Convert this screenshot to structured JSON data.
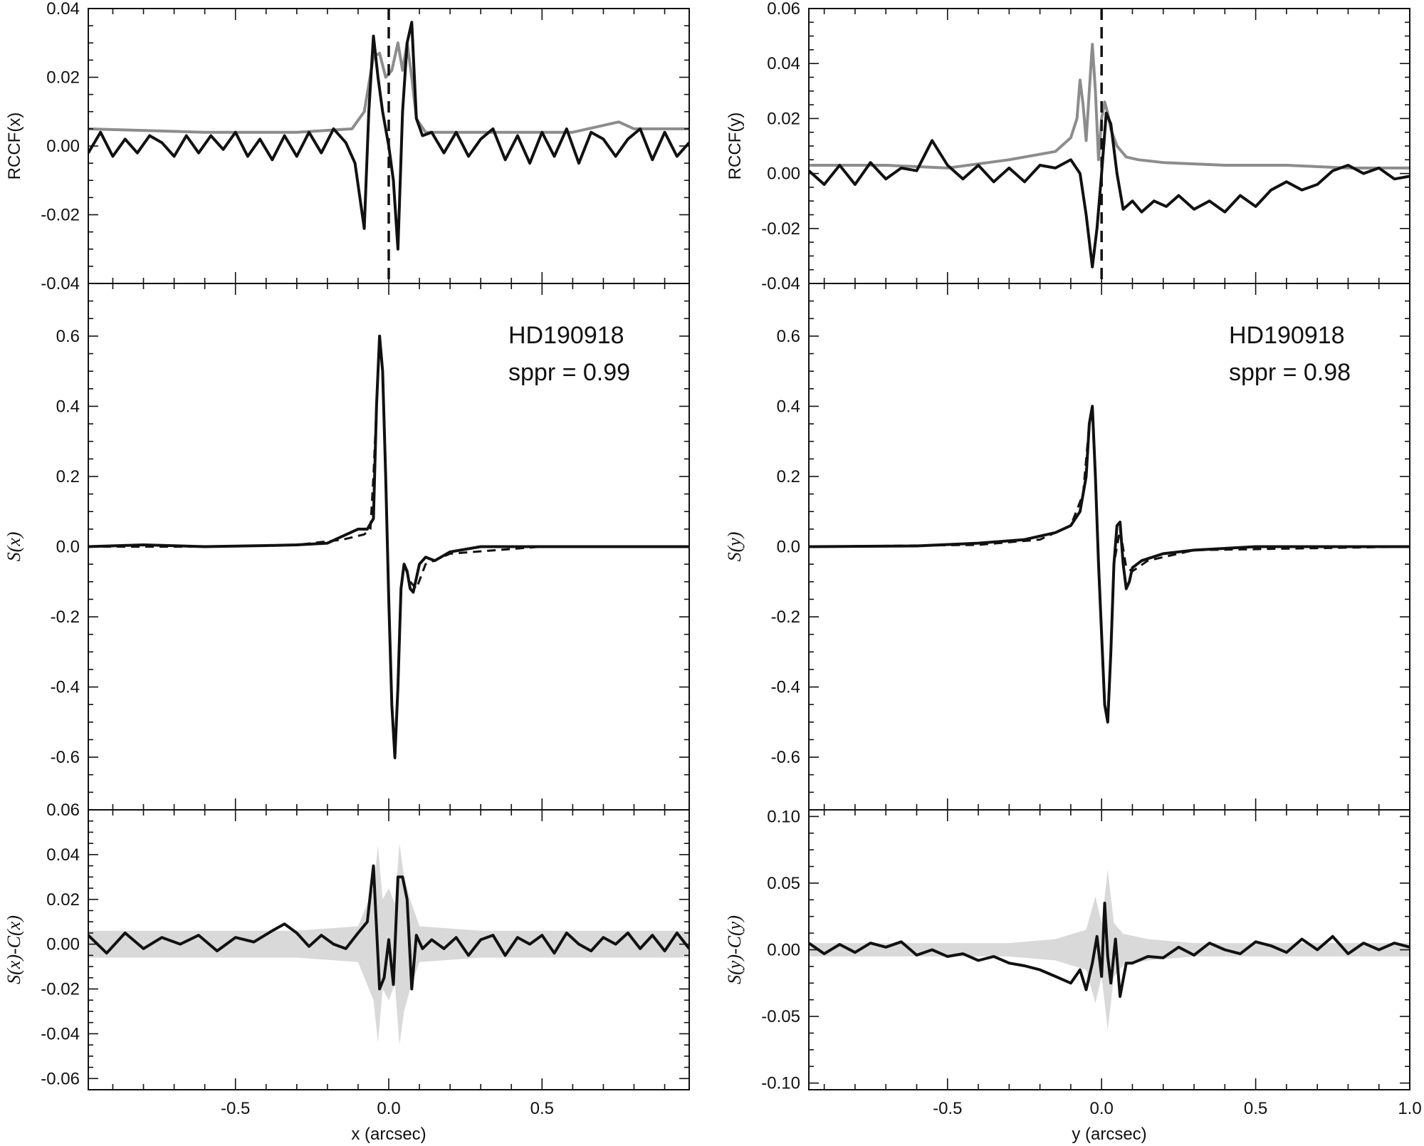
{
  "colors": {
    "black": "#111111",
    "gray": "#8c8c8c",
    "band": "#d9d9d9"
  },
  "chart_data": [
    {
      "type": "line",
      "panel": "left-top",
      "ylabel": "RCCF(x)",
      "xlim": [
        -0.98,
        0.98
      ],
      "ylim": [
        -0.04,
        0.04
      ],
      "yticks": [
        "-0.04",
        "-0.02",
        "0.00",
        "0.02",
        "0.04"
      ],
      "vline_x": 0.0,
      "series": [
        {
          "color": "gray",
          "x": [
            -0.98,
            -0.6,
            -0.3,
            -0.12,
            -0.08,
            -0.05,
            -0.03,
            -0.01,
            0.01,
            0.03,
            0.045,
            0.06,
            0.075,
            0.09,
            0.12,
            0.3,
            0.6,
            0.75,
            0.8,
            0.98
          ],
          "y": [
            0.005,
            0.004,
            0.004,
            0.005,
            0.01,
            0.026,
            0.027,
            0.02,
            0.022,
            0.03,
            0.022,
            0.03,
            0.02,
            0.008,
            0.004,
            0.004,
            0.004,
            0.007,
            0.005,
            0.005
          ]
        },
        {
          "color": "black",
          "x": [
            -0.98,
            -0.94,
            -0.9,
            -0.86,
            -0.82,
            -0.78,
            -0.74,
            -0.7,
            -0.66,
            -0.62,
            -0.58,
            -0.54,
            -0.5,
            -0.46,
            -0.42,
            -0.38,
            -0.34,
            -0.3,
            -0.26,
            -0.22,
            -0.18,
            -0.14,
            -0.11,
            -0.08,
            -0.065,
            -0.05,
            -0.035,
            -0.02,
            0.0,
            0.015,
            0.03,
            0.045,
            0.06,
            0.075,
            0.09,
            0.11,
            0.14,
            0.18,
            0.22,
            0.26,
            0.3,
            0.34,
            0.38,
            0.42,
            0.46,
            0.5,
            0.54,
            0.58,
            0.62,
            0.66,
            0.7,
            0.74,
            0.78,
            0.82,
            0.86,
            0.9,
            0.94,
            0.98
          ],
          "y": [
            -0.002,
            0.004,
            -0.003,
            0.002,
            -0.002,
            0.003,
            0.001,
            -0.003,
            0.003,
            -0.002,
            0.003,
            -0.001,
            0.004,
            -0.003,
            0.002,
            -0.004,
            0.003,
            -0.003,
            0.004,
            -0.002,
            0.005,
            0.001,
            -0.005,
            -0.024,
            0.01,
            0.032,
            0.02,
            0.01,
            0.0,
            -0.01,
            -0.03,
            0.01,
            0.03,
            0.036,
            0.008,
            0.003,
            0.004,
            -0.002,
            0.004,
            -0.003,
            0.002,
            0.005,
            -0.004,
            0.003,
            -0.005,
            0.004,
            -0.003,
            0.005,
            -0.005,
            0.004,
            0.002,
            -0.003,
            0.002,
            0.005,
            -0.004,
            0.004,
            -0.003,
            0.001
          ]
        }
      ]
    },
    {
      "type": "line",
      "panel": "left-middle",
      "ylabel": "S(x)",
      "xlim": [
        -0.98,
        0.98
      ],
      "ylim": [
        -0.75,
        0.75
      ],
      "yticks": [
        "-0.6",
        "-0.4",
        "-0.2",
        "0.0",
        "0.2",
        "0.4",
        "0.6"
      ],
      "annotation": [
        "HD190918",
        "sppr = 0.99"
      ],
      "series": [
        {
          "color": "black",
          "style": "solid",
          "x": [
            -0.98,
            -0.8,
            -0.6,
            -0.4,
            -0.3,
            -0.2,
            -0.15,
            -0.1,
            -0.07,
            -0.05,
            -0.04,
            -0.03,
            -0.02,
            -0.01,
            0.0,
            0.01,
            0.02,
            0.03,
            0.04,
            0.05,
            0.06,
            0.07,
            0.08,
            0.1,
            0.12,
            0.15,
            0.2,
            0.3,
            0.5,
            0.7,
            0.98
          ],
          "y": [
            0.0,
            0.005,
            0.0,
            0.003,
            0.005,
            0.01,
            0.03,
            0.05,
            0.05,
            0.08,
            0.4,
            0.6,
            0.5,
            0.2,
            -0.15,
            -0.45,
            -0.6,
            -0.4,
            -0.12,
            -0.05,
            -0.07,
            -0.12,
            -0.13,
            -0.05,
            -0.03,
            -0.04,
            -0.015,
            0.0,
            0.0,
            0.0,
            0.0
          ]
        },
        {
          "color": "black",
          "style": "dashed",
          "x": [
            -0.98,
            -0.6,
            -0.3,
            -0.15,
            -0.08,
            -0.06,
            -0.05,
            -0.04,
            -0.03,
            -0.02,
            -0.01,
            0.0,
            0.01,
            0.02,
            0.03,
            0.04,
            0.05,
            0.07,
            0.09,
            0.12,
            0.2,
            0.5,
            0.98
          ],
          "y": [
            0.0,
            0.0,
            0.005,
            0.02,
            0.035,
            0.05,
            0.2,
            0.4,
            0.61,
            0.5,
            0.2,
            -0.15,
            -0.45,
            -0.61,
            -0.4,
            -0.12,
            -0.05,
            -0.1,
            -0.12,
            -0.05,
            -0.02,
            0.0,
            0.0
          ]
        }
      ]
    },
    {
      "type": "line",
      "panel": "left-bottom",
      "ylabel": "S(x)-C(x)",
      "xlabel": "x (arcsec)",
      "xlim": [
        -0.98,
        0.98
      ],
      "ylim": [
        -0.065,
        0.06
      ],
      "yticks": [
        "-0.06",
        "-0.04",
        "-0.02",
        "0.00",
        "0.02",
        "0.04",
        "0.06"
      ],
      "xticks": [
        "-0.5",
        "0.0",
        "0.5"
      ],
      "band": {
        "x": [
          -0.98,
          -0.3,
          -0.1,
          -0.05,
          -0.035,
          -0.02,
          0.0,
          0.02,
          0.035,
          0.05,
          0.07,
          0.1,
          0.3,
          0.98
        ],
        "halfwidth": [
          0.006,
          0.006,
          0.008,
          0.025,
          0.044,
          0.02,
          0.025,
          0.018,
          0.045,
          0.03,
          0.02,
          0.008,
          0.006,
          0.006
        ]
      },
      "series": [
        {
          "color": "black",
          "x": [
            -0.98,
            -0.92,
            -0.86,
            -0.8,
            -0.74,
            -0.68,
            -0.62,
            -0.56,
            -0.5,
            -0.44,
            -0.38,
            -0.34,
            -0.3,
            -0.26,
            -0.22,
            -0.18,
            -0.14,
            -0.1,
            -0.07,
            -0.05,
            -0.03,
            -0.015,
            0.0,
            0.015,
            0.03,
            0.045,
            0.06,
            0.075,
            0.09,
            0.11,
            0.14,
            0.18,
            0.22,
            0.26,
            0.3,
            0.34,
            0.38,
            0.42,
            0.46,
            0.5,
            0.54,
            0.58,
            0.62,
            0.66,
            0.7,
            0.74,
            0.78,
            0.82,
            0.86,
            0.9,
            0.94,
            0.98
          ],
          "y": [
            0.004,
            -0.004,
            0.005,
            -0.002,
            0.003,
            0.0,
            0.004,
            -0.003,
            0.003,
            0.001,
            0.006,
            0.009,
            0.005,
            -0.001,
            0.004,
            0.0,
            -0.002,
            0.005,
            0.01,
            0.035,
            -0.02,
            -0.015,
            0.002,
            -0.018,
            0.03,
            0.03,
            0.02,
            -0.02,
            0.004,
            -0.002,
            0.002,
            -0.002,
            0.003,
            -0.005,
            0.002,
            0.004,
            -0.005,
            0.003,
            0.0,
            0.004,
            -0.004,
            0.005,
            0.0,
            -0.003,
            0.003,
            0.0,
            0.005,
            -0.002,
            0.004,
            -0.003,
            0.005,
            -0.002
          ]
        }
      ]
    },
    {
      "type": "line",
      "panel": "right-top",
      "ylabel": "RCCF(y)",
      "xlim": [
        -0.95,
        1.0
      ],
      "ylim": [
        -0.04,
        0.06
      ],
      "yticks": [
        "-0.04",
        "-0.02",
        "0.00",
        "0.02",
        "0.04",
        "0.06"
      ],
      "vline_x": 0.0,
      "series": [
        {
          "color": "gray",
          "x": [
            -0.95,
            -0.7,
            -0.5,
            -0.3,
            -0.15,
            -0.1,
            -0.08,
            -0.07,
            -0.06,
            -0.05,
            -0.04,
            -0.03,
            -0.02,
            -0.01,
            0.0,
            0.01,
            0.02,
            0.03,
            0.05,
            0.08,
            0.12,
            0.2,
            0.4,
            0.6,
            0.8,
            1.0
          ],
          "y": [
            0.003,
            0.003,
            0.002,
            0.005,
            0.008,
            0.013,
            0.02,
            0.034,
            0.025,
            0.012,
            0.03,
            0.047,
            0.03,
            0.005,
            0.02,
            0.026,
            0.022,
            0.016,
            0.01,
            0.006,
            0.005,
            0.004,
            0.003,
            0.003,
            0.002,
            0.002
          ]
        },
        {
          "color": "black",
          "x": [
            -0.95,
            -0.9,
            -0.85,
            -0.8,
            -0.75,
            -0.7,
            -0.65,
            -0.6,
            -0.55,
            -0.5,
            -0.45,
            -0.4,
            -0.35,
            -0.3,
            -0.25,
            -0.2,
            -0.15,
            -0.1,
            -0.07,
            -0.05,
            -0.03,
            -0.015,
            0.0,
            0.015,
            0.03,
            0.05,
            0.07,
            0.1,
            0.13,
            0.17,
            0.21,
            0.25,
            0.3,
            0.35,
            0.4,
            0.45,
            0.5,
            0.55,
            0.6,
            0.65,
            0.7,
            0.75,
            0.8,
            0.85,
            0.9,
            0.95,
            1.0
          ],
          "y": [
            0.001,
            -0.004,
            0.003,
            -0.004,
            0.004,
            -0.002,
            0.002,
            0.001,
            0.012,
            0.003,
            -0.002,
            0.003,
            -0.003,
            0.002,
            -0.003,
            0.003,
            0.002,
            0.005,
            0.0,
            -0.015,
            -0.034,
            -0.02,
            0.0,
            0.022,
            0.018,
            0.0,
            -0.013,
            -0.01,
            -0.014,
            -0.01,
            -0.012,
            -0.008,
            -0.013,
            -0.01,
            -0.014,
            -0.008,
            -0.012,
            -0.006,
            -0.003,
            -0.006,
            -0.004,
            0.001,
            0.003,
            0.0,
            0.002,
            -0.002,
            -0.001
          ]
        }
      ]
    },
    {
      "type": "line",
      "panel": "right-middle",
      "ylabel": "S(y)",
      "xlim": [
        -0.95,
        1.0
      ],
      "ylim": [
        -0.75,
        0.75
      ],
      "yticks": [
        "-0.6",
        "-0.4",
        "-0.2",
        "0.0",
        "0.2",
        "0.4",
        "0.6"
      ],
      "annotation": [
        "HD190918",
        "sppr = 0.98"
      ],
      "series": [
        {
          "color": "black",
          "style": "solid",
          "x": [
            -0.95,
            -0.6,
            -0.4,
            -0.25,
            -0.15,
            -0.1,
            -0.07,
            -0.05,
            -0.04,
            -0.03,
            -0.02,
            -0.01,
            0.0,
            0.01,
            0.02,
            0.03,
            0.04,
            0.05,
            0.06,
            0.07,
            0.08,
            0.09,
            0.1,
            0.13,
            0.2,
            0.3,
            0.5,
            0.7,
            1.0
          ],
          "y": [
            0.0,
            0.002,
            0.01,
            0.02,
            0.04,
            0.06,
            0.1,
            0.2,
            0.35,
            0.4,
            0.2,
            -0.05,
            -0.25,
            -0.45,
            -0.5,
            -0.3,
            -0.05,
            0.06,
            0.07,
            -0.05,
            -0.12,
            -0.1,
            -0.06,
            -0.04,
            -0.02,
            -0.01,
            0.0,
            0.0,
            0.0
          ]
        },
        {
          "color": "black",
          "style": "dashed",
          "x": [
            -0.95,
            -0.4,
            -0.2,
            -0.1,
            -0.06,
            -0.04,
            -0.03,
            -0.02,
            -0.01,
            0.0,
            0.01,
            0.02,
            0.03,
            0.04,
            0.06,
            0.08,
            0.1,
            0.15,
            0.3,
            1.0
          ],
          "y": [
            0.0,
            0.005,
            0.02,
            0.06,
            0.15,
            0.35,
            0.4,
            0.2,
            -0.05,
            -0.25,
            -0.45,
            -0.5,
            -0.3,
            -0.05,
            0.05,
            -0.06,
            -0.07,
            -0.04,
            -0.01,
            0.0
          ]
        }
      ]
    },
    {
      "type": "line",
      "panel": "right-bottom",
      "ylabel": "S(y)-C(y)",
      "xlabel": "y (arcsec)",
      "xlim": [
        -0.95,
        1.0
      ],
      "ylim": [
        -0.105,
        0.105
      ],
      "yticks": [
        "-0.10",
        "-0.05",
        "0.00",
        "0.05",
        "0.10"
      ],
      "xticks": [
        "-0.5",
        "0.0",
        "0.5",
        "1.0"
      ],
      "band": {
        "x": [
          -0.95,
          -0.3,
          -0.15,
          -0.05,
          -0.02,
          0.0,
          0.02,
          0.04,
          0.07,
          0.15,
          0.3,
          1.0
        ],
        "halfwidth": [
          0.005,
          0.005,
          0.008,
          0.015,
          0.04,
          0.02,
          0.06,
          0.02,
          0.012,
          0.008,
          0.005,
          0.005
        ]
      },
      "series": [
        {
          "color": "black",
          "x": [
            -0.95,
            -0.9,
            -0.85,
            -0.8,
            -0.75,
            -0.7,
            -0.65,
            -0.6,
            -0.55,
            -0.5,
            -0.45,
            -0.4,
            -0.35,
            -0.3,
            -0.25,
            -0.2,
            -0.15,
            -0.1,
            -0.07,
            -0.05,
            -0.03,
            -0.015,
            0.0,
            0.01,
            0.02,
            0.03,
            0.045,
            0.06,
            0.08,
            0.1,
            0.15,
            0.2,
            0.25,
            0.3,
            0.35,
            0.4,
            0.45,
            0.5,
            0.55,
            0.6,
            0.65,
            0.7,
            0.75,
            0.8,
            0.85,
            0.9,
            0.95,
            1.0
          ],
          "y": [
            0.005,
            -0.003,
            0.004,
            -0.002,
            0.005,
            0.002,
            0.006,
            -0.004,
            0.0,
            -0.005,
            -0.003,
            -0.008,
            -0.005,
            -0.01,
            -0.012,
            -0.015,
            -0.02,
            -0.025,
            -0.015,
            -0.03,
            -0.01,
            0.01,
            -0.02,
            0.035,
            -0.005,
            -0.025,
            0.008,
            -0.035,
            -0.01,
            -0.01,
            -0.005,
            -0.006,
            0.002,
            -0.004,
            0.005,
            0.0,
            -0.003,
            0.006,
            0.003,
            -0.002,
            0.008,
            0.0,
            0.01,
            -0.003,
            0.005,
            0.0,
            0.005,
            0.002
          ]
        }
      ]
    }
  ]
}
